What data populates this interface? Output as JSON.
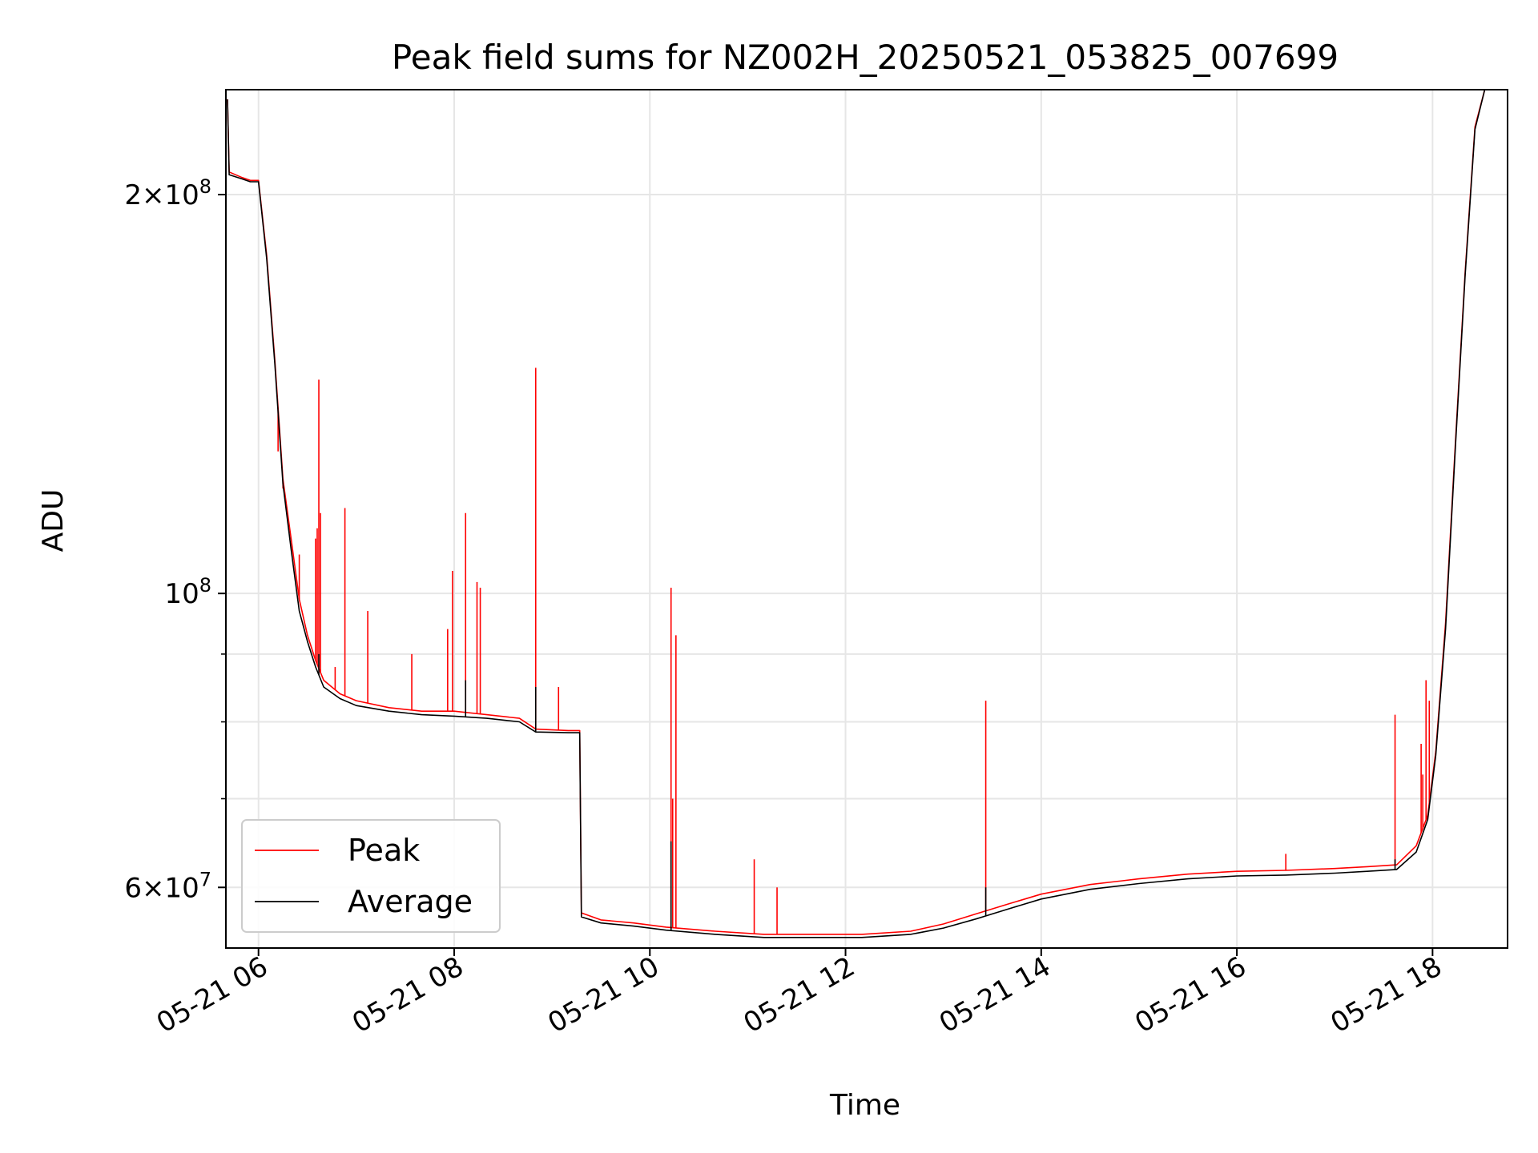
{
  "chart_data": {
    "type": "line",
    "title": "Peak field sums for NZ002H_20250521_053825_007699",
    "xlabel": "Time",
    "ylabel": "ADU",
    "y_scale": "log",
    "ylim": [
      54000000,
      240000000
    ],
    "xlim": [
      "2025-05-21 05:40",
      "2025-05-21 18:46"
    ],
    "grid": true,
    "legend_position": "lower-left",
    "x_ticks": [
      {
        "t": "2025-05-21 06:00",
        "label": "05-21 06"
      },
      {
        "t": "2025-05-21 08:00",
        "label": "05-21 08"
      },
      {
        "t": "2025-05-21 10:00",
        "label": "05-21 10"
      },
      {
        "t": "2025-05-21 12:00",
        "label": "05-21 12"
      },
      {
        "t": "2025-05-21 14:00",
        "label": "05-21 14"
      },
      {
        "t": "2025-05-21 16:00",
        "label": "05-21 16"
      },
      {
        "t": "2025-05-21 18:00",
        "label": "05-21 18"
      }
    ],
    "y_ticks": [
      {
        "value": 200000000,
        "mantissa": "2",
        "exponent": "8"
      },
      {
        "value": 100000000,
        "mantissa": "",
        "exponent": "8"
      },
      {
        "value": 60000000,
        "mantissa": "6",
        "exponent": "7"
      }
    ],
    "y_minor_ticks": [
      70000000,
      80000000,
      90000000
    ],
    "series": [
      {
        "name": "Peak",
        "color": "#ff0000",
        "points": [
          [
            "2025-05-21 05:41",
            236000000
          ],
          [
            "2025-05-21 05:42",
            208000000
          ],
          [
            "2025-05-21 05:50",
            206000000
          ],
          [
            "2025-05-21 05:55",
            205000000
          ],
          [
            "2025-05-21 06:00",
            205000000
          ],
          [
            "2025-05-21 06:05",
            180000000
          ],
          [
            "2025-05-21 06:10",
            150000000
          ],
          [
            "2025-05-21 06:15",
            122000000
          ],
          [
            "2025-05-21 06:20",
            110000000
          ],
          [
            "2025-05-21 06:25",
            99000000
          ],
          [
            "2025-05-21 06:30",
            93000000
          ],
          [
            "2025-05-21 06:35",
            89000000
          ],
          [
            "2025-05-21 06:40",
            86000000
          ],
          [
            "2025-05-21 06:50",
            84000000
          ],
          [
            "2025-05-21 07:00",
            83000000
          ],
          [
            "2025-05-21 07:20",
            82000000
          ],
          [
            "2025-05-21 07:40",
            81500000
          ],
          [
            "2025-05-21 08:00",
            81500000
          ],
          [
            "2025-05-21 08:20",
            81000000
          ],
          [
            "2025-05-21 08:40",
            80500000
          ],
          [
            "2025-05-21 08:50",
            79000000
          ],
          [
            "2025-05-21 09:10",
            78800000
          ],
          [
            "2025-05-21 09:17",
            78800000
          ],
          [
            "2025-05-21 09:18",
            57400000
          ],
          [
            "2025-05-21 09:30",
            56700000
          ],
          [
            "2025-05-21 09:50",
            56400000
          ],
          [
            "2025-05-21 10:10",
            56000000
          ],
          [
            "2025-05-21 10:40",
            55600000
          ],
          [
            "2025-05-21 11:10",
            55300000
          ],
          [
            "2025-05-21 11:40",
            55300000
          ],
          [
            "2025-05-21 12:10",
            55300000
          ],
          [
            "2025-05-21 12:40",
            55600000
          ],
          [
            "2025-05-21 13:00",
            56300000
          ],
          [
            "2025-05-21 13:20",
            57300000
          ],
          [
            "2025-05-21 13:40",
            58300000
          ],
          [
            "2025-05-21 14:00",
            59300000
          ],
          [
            "2025-05-21 14:30",
            60300000
          ],
          [
            "2025-05-21 15:00",
            60900000
          ],
          [
            "2025-05-21 15:30",
            61400000
          ],
          [
            "2025-05-21 16:00",
            61700000
          ],
          [
            "2025-05-21 16:30",
            61800000
          ],
          [
            "2025-05-21 17:00",
            62000000
          ],
          [
            "2025-05-21 17:20",
            62200000
          ],
          [
            "2025-05-21 17:38",
            62400000
          ],
          [
            "2025-05-21 17:50",
            64500000
          ],
          [
            "2025-05-21 17:57",
            68000000
          ],
          [
            "2025-05-21 18:02",
            76000000
          ],
          [
            "2025-05-21 18:08",
            95000000
          ],
          [
            "2025-05-21 18:14",
            130000000
          ],
          [
            "2025-05-21 18:20",
            175000000
          ],
          [
            "2025-05-21 18:26",
            225000000
          ],
          [
            "2025-05-21 18:32",
            240000000
          ],
          [
            "2025-05-21 18:46",
            240000000
          ]
        ],
        "spikes": [
          [
            "2025-05-21 06:12",
            128000000
          ],
          [
            "2025-05-21 06:15",
            120000000
          ],
          [
            "2025-05-21 06:25",
            107000000
          ],
          [
            "2025-05-21 06:35",
            110000000
          ],
          [
            "2025-05-21 06:36",
            112000000
          ],
          [
            "2025-05-21 06:37",
            145000000
          ],
          [
            "2025-05-21 06:38",
            115000000
          ],
          [
            "2025-05-21 06:53",
            116000000
          ],
          [
            "2025-05-21 06:47",
            88000000
          ],
          [
            "2025-05-21 07:07",
            97000000
          ],
          [
            "2025-05-21 07:34",
            90000000
          ],
          [
            "2025-05-21 07:59",
            104000000
          ],
          [
            "2025-05-21 07:56",
            94000000
          ],
          [
            "2025-05-21 08:07",
            115000000
          ],
          [
            "2025-05-21 08:14",
            102000000
          ],
          [
            "2025-05-21 08:16",
            101000000
          ],
          [
            "2025-05-21 08:50",
            148000000
          ],
          [
            "2025-05-21 09:04",
            85000000
          ],
          [
            "2025-05-21 10:13",
            101000000
          ],
          [
            "2025-05-21 10:16",
            93000000
          ],
          [
            "2025-05-21 10:14",
            70000000
          ],
          [
            "2025-05-21 11:04",
            63000000
          ],
          [
            "2025-05-21 11:18",
            60000000
          ],
          [
            "2025-05-21 13:26",
            83000000
          ],
          [
            "2025-05-21 16:30",
            63600000
          ],
          [
            "2025-05-21 17:37",
            81000000
          ],
          [
            "2025-05-21 17:53",
            77000000
          ],
          [
            "2025-05-21 17:56",
            86000000
          ],
          [
            "2025-05-21 17:58",
            83000000
          ],
          [
            "2025-05-21 17:54",
            73000000
          ]
        ]
      },
      {
        "name": "Average",
        "color": "#000000",
        "points": [
          [
            "2025-05-21 05:41",
            236000000
          ],
          [
            "2025-05-21 05:42",
            207000000
          ],
          [
            "2025-05-21 05:50",
            205500000
          ],
          [
            "2025-05-21 05:55",
            204500000
          ],
          [
            "2025-05-21 06:00",
            204500000
          ],
          [
            "2025-05-21 06:05",
            179000000
          ],
          [
            "2025-05-21 06:10",
            149000000
          ],
          [
            "2025-05-21 06:15",
            121000000
          ],
          [
            "2025-05-21 06:20",
            108000000
          ],
          [
            "2025-05-21 06:25",
            97000000
          ],
          [
            "2025-05-21 06:30",
            92000000
          ],
          [
            "2025-05-21 06:35",
            88000000
          ],
          [
            "2025-05-21 06:40",
            85000000
          ],
          [
            "2025-05-21 06:50",
            83300000
          ],
          [
            "2025-05-21 07:00",
            82300000
          ],
          [
            "2025-05-21 07:20",
            81500000
          ],
          [
            "2025-05-21 07:40",
            81000000
          ],
          [
            "2025-05-21 08:00",
            80800000
          ],
          [
            "2025-05-21 08:20",
            80500000
          ],
          [
            "2025-05-21 08:40",
            80000000
          ],
          [
            "2025-05-21 08:50",
            78600000
          ],
          [
            "2025-05-21 09:10",
            78500000
          ],
          [
            "2025-05-21 09:17",
            78500000
          ],
          [
            "2025-05-21 09:18",
            57000000
          ],
          [
            "2025-05-21 09:30",
            56400000
          ],
          [
            "2025-05-21 09:50",
            56100000
          ],
          [
            "2025-05-21 10:10",
            55700000
          ],
          [
            "2025-05-21 10:40",
            55300000
          ],
          [
            "2025-05-21 11:10",
            55000000
          ],
          [
            "2025-05-21 11:40",
            55000000
          ],
          [
            "2025-05-21 12:10",
            55000000
          ],
          [
            "2025-05-21 12:40",
            55300000
          ],
          [
            "2025-05-21 13:00",
            55900000
          ],
          [
            "2025-05-21 13:20",
            56800000
          ],
          [
            "2025-05-21 13:40",
            57800000
          ],
          [
            "2025-05-21 14:00",
            58800000
          ],
          [
            "2025-05-21 14:30",
            59800000
          ],
          [
            "2025-05-21 15:00",
            60400000
          ],
          [
            "2025-05-21 15:30",
            60900000
          ],
          [
            "2025-05-21 16:00",
            61200000
          ],
          [
            "2025-05-21 16:30",
            61300000
          ],
          [
            "2025-05-21 17:00",
            61500000
          ],
          [
            "2025-05-21 17:20",
            61700000
          ],
          [
            "2025-05-21 17:38",
            61900000
          ],
          [
            "2025-05-21 17:50",
            63800000
          ],
          [
            "2025-05-21 17:57",
            67500000
          ],
          [
            "2025-05-21 18:02",
            75500000
          ],
          [
            "2025-05-21 18:08",
            94000000
          ],
          [
            "2025-05-21 18:14",
            129000000
          ],
          [
            "2025-05-21 18:20",
            174000000
          ],
          [
            "2025-05-21 18:26",
            224000000
          ],
          [
            "2025-05-21 18:32",
            240000000
          ],
          [
            "2025-05-21 18:46",
            240000000
          ]
        ],
        "spikes": [
          [
            "2025-05-21 06:37",
            90000000
          ],
          [
            "2025-05-21 08:07",
            86000000
          ],
          [
            "2025-05-21 08:50",
            85000000
          ],
          [
            "2025-05-21 10:13",
            65000000
          ],
          [
            "2025-05-21 13:26",
            60000000
          ],
          [
            "2025-05-21 17:37",
            63000000
          ]
        ]
      }
    ]
  }
}
